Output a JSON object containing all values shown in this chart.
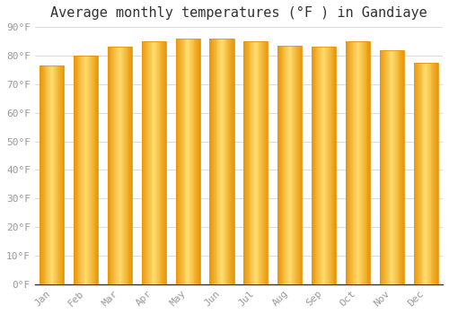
{
  "months": [
    "Jan",
    "Feb",
    "Mar",
    "Apr",
    "May",
    "Jun",
    "Jul",
    "Aug",
    "Sep",
    "Oct",
    "Nov",
    "Dec"
  ],
  "values": [
    76.5,
    80.0,
    83.0,
    85.0,
    86.0,
    86.0,
    85.0,
    83.5,
    83.0,
    85.0,
    82.0,
    77.5
  ],
  "bar_color_main": "#FFC125",
  "bar_color_light": "#FFDD80",
  "bar_color_edge": "#E8960A",
  "background_color": "#FFFFFF",
  "grid_color": "#DDDDDD",
  "title": "Average monthly temperatures (°F ) in Gandiaye",
  "title_fontsize": 11,
  "ylabel_ticks": [
    "0°F",
    "10°F",
    "20°F",
    "30°F",
    "40°F",
    "50°F",
    "60°F",
    "70°F",
    "80°F",
    "90°F"
  ],
  "ytick_values": [
    0,
    10,
    20,
    30,
    40,
    50,
    60,
    70,
    80,
    90
  ],
  "ylim": [
    0,
    90
  ],
  "tick_fontsize": 8,
  "tick_color": "#999999",
  "font_family": "monospace"
}
